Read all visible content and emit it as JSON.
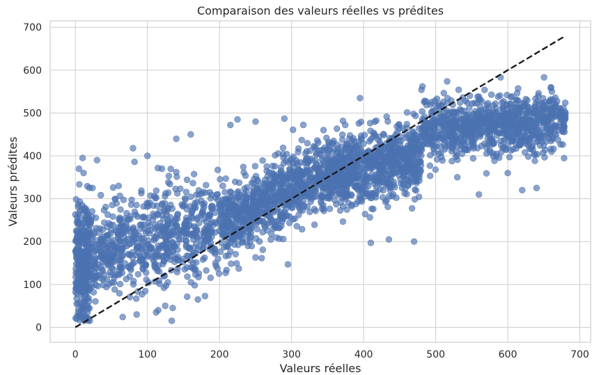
{
  "chart_data": {
    "type": "scatter",
    "title": "Comparaison des valeurs réelles vs prédites",
    "xlabel": "Valeurs réelles",
    "ylabel": "Valeurs prédites",
    "xlim": [
      -35,
      715
    ],
    "ylim": [
      -35,
      715
    ],
    "xticks": [
      0,
      100,
      200,
      300,
      400,
      500,
      600,
      700
    ],
    "yticks": [
      0,
      100,
      200,
      300,
      400,
      500,
      600,
      700
    ],
    "xtick_labels": [
      "0",
      "100",
      "200",
      "300",
      "400",
      "500",
      "600",
      "700"
    ],
    "ytick_labels": [
      "0",
      "100",
      "200",
      "300",
      "400",
      "500",
      "600",
      "700"
    ],
    "grid": true,
    "point_color": "#4c72b0",
    "point_opacity": 0.65,
    "reference_line": {
      "x": [
        0,
        680
      ],
      "y": [
        0,
        680
      ],
      "color": "#1a1a1a",
      "style": "dashed"
    },
    "clusters": [
      {
        "x_range": [
          0,
          20
        ],
        "y_center": 150,
        "y_spread": 75,
        "count": 320
      },
      {
        "x_range": [
          20,
          200
        ],
        "y_center_start": 170,
        "y_center_end": 240,
        "y_spread": 55,
        "count": 700
      },
      {
        "x_range": [
          200,
          350
        ],
        "y_center_start": 240,
        "y_center_end": 360,
        "y_spread": 45,
        "count": 800
      },
      {
        "x_range": [
          350,
          480
        ],
        "y_center_start": 360,
        "y_center_end": 400,
        "y_spread": 40,
        "count": 800
      },
      {
        "x_range": [
          480,
          680
        ],
        "y_center_start": 460,
        "y_center_end": 480,
        "y_spread": 35,
        "count": 900
      }
    ],
    "outliers": [
      {
        "x": 5,
        "y": 370
      },
      {
        "x": 10,
        "y": 395
      },
      {
        "x": 30,
        "y": 390
      },
      {
        "x": 80,
        "y": 418
      },
      {
        "x": 100,
        "y": 400
      },
      {
        "x": 140,
        "y": 440
      },
      {
        "x": 160,
        "y": 450
      },
      {
        "x": 215,
        "y": 472
      },
      {
        "x": 225,
        "y": 485
      },
      {
        "x": 290,
        "y": 487
      },
      {
        "x": 250,
        "y": 480
      },
      {
        "x": 395,
        "y": 535
      },
      {
        "x": 410,
        "y": 197
      },
      {
        "x": 435,
        "y": 205
      },
      {
        "x": 470,
        "y": 200
      },
      {
        "x": 295,
        "y": 147
      },
      {
        "x": 115,
        "y": 40
      },
      {
        "x": 135,
        "y": 45
      },
      {
        "x": 170,
        "y": 65
      },
      {
        "x": 85,
        "y": 30
      },
      {
        "x": 590,
        "y": 583
      },
      {
        "x": 620,
        "y": 320
      },
      {
        "x": 640,
        "y": 325
      },
      {
        "x": 560,
        "y": 310
      },
      {
        "x": 660,
        "y": 560
      },
      {
        "x": 680,
        "y": 500
      },
      {
        "x": 60,
        "y": 330
      },
      {
        "x": 120,
        "y": 370
      },
      {
        "x": 250,
        "y": 163
      },
      {
        "x": 380,
        "y": 440
      },
      {
        "x": 530,
        "y": 350
      },
      {
        "x": 600,
        "y": 360
      }
    ]
  }
}
